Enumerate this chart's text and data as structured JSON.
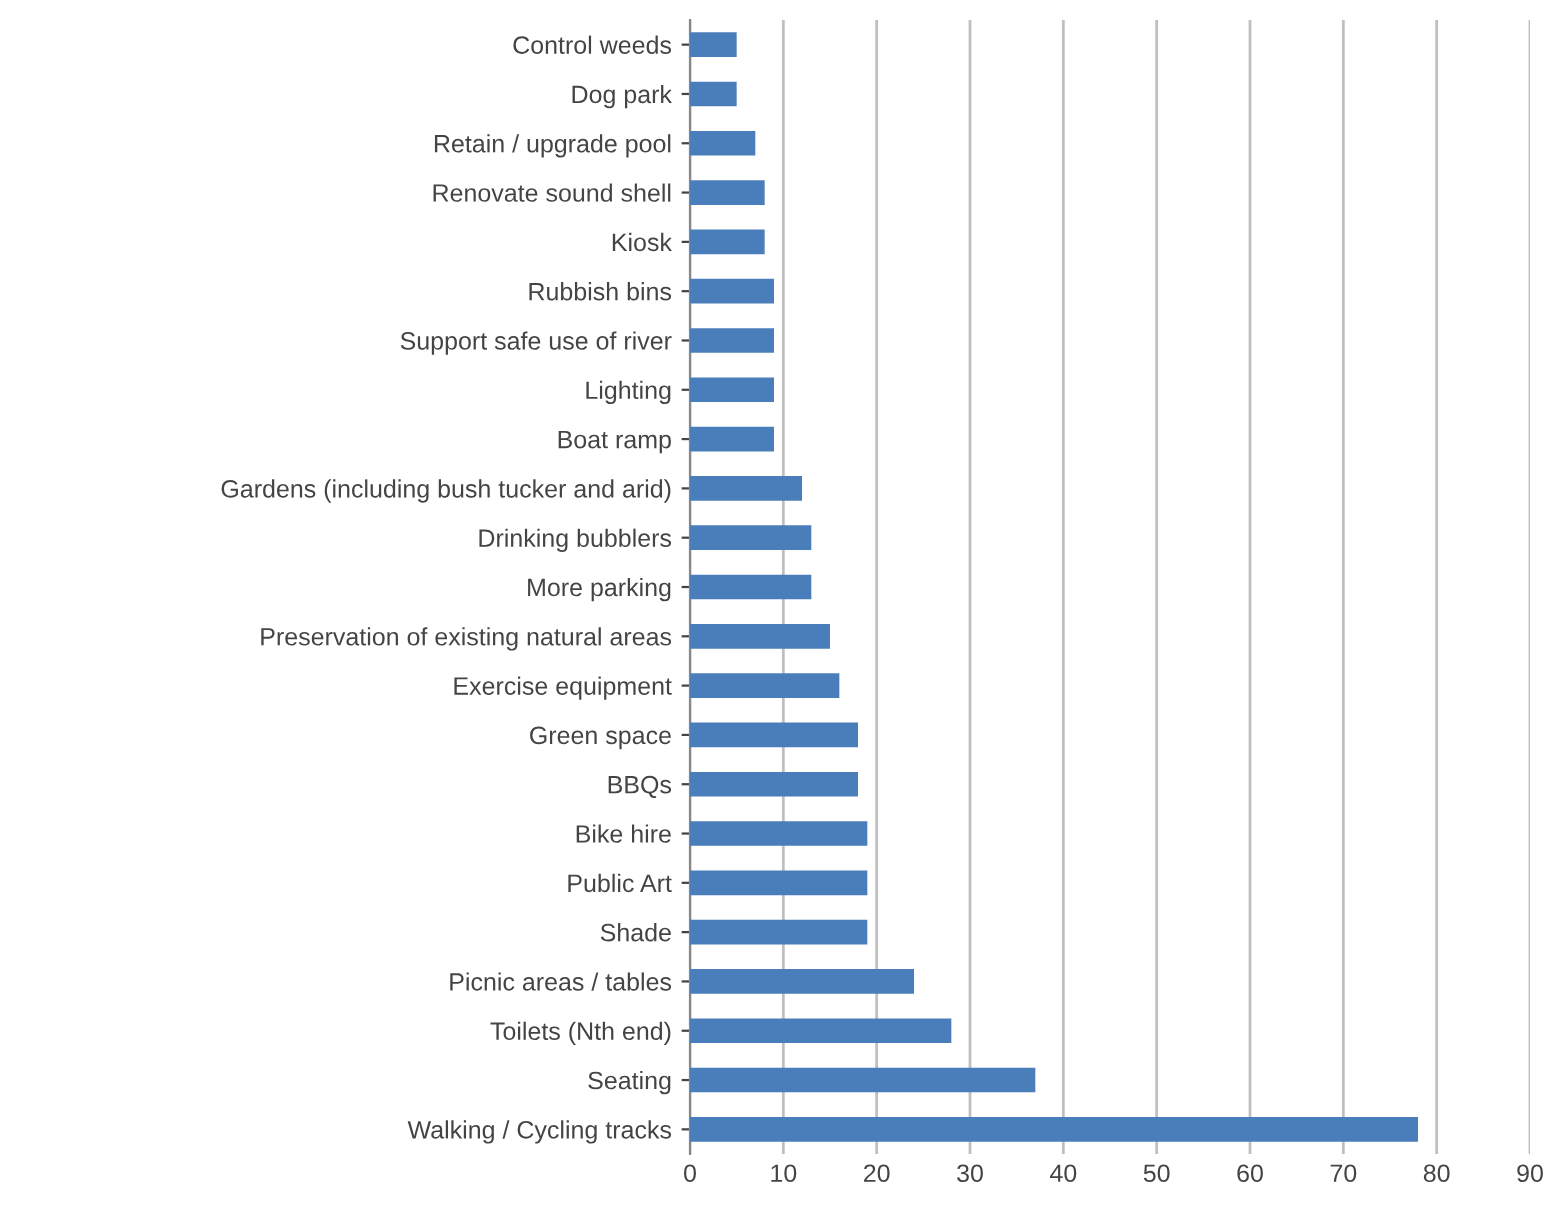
{
  "chart_data": {
    "type": "bar",
    "orientation": "horizontal",
    "categories": [
      "Control weeds",
      "Dog park",
      "Retain / upgrade pool",
      "Renovate sound shell",
      "Kiosk",
      "Rubbish bins",
      "Support safe use of river",
      "Lighting",
      "Boat ramp",
      "Gardens (including bush tucker and arid)",
      "Drinking bubblers",
      "More parking",
      "Preservation of existing natural areas",
      "Exercise equipment",
      "Green space",
      "BBQs",
      "Bike hire",
      "Public Art",
      "Shade",
      "Picnic areas / tables",
      "Toilets (Nth end)",
      "Seating",
      "Walking / Cycling tracks"
    ],
    "values": [
      5,
      5,
      7,
      8,
      8,
      9,
      9,
      9,
      9,
      12,
      13,
      13,
      15,
      16,
      18,
      18,
      19,
      19,
      19,
      24,
      28,
      37,
      78
    ],
    "color": "#4a7ebb",
    "xlim": [
      0,
      90
    ],
    "xticks": [
      0,
      10,
      20,
      30,
      40,
      50,
      60,
      70,
      80,
      90
    ],
    "grid": "x",
    "legend": false
  }
}
